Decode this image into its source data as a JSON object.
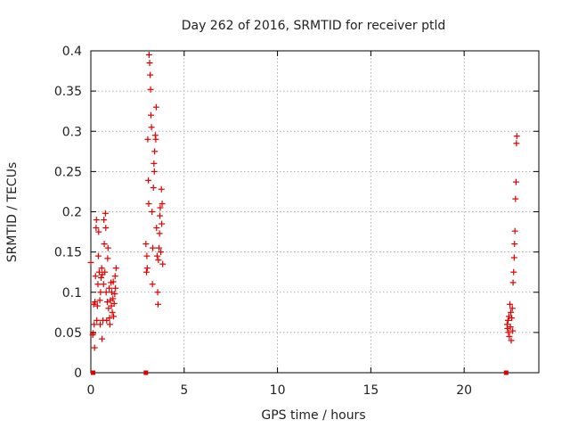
{
  "chart_data": {
    "type": "scatter",
    "title": "Day 262 of 2016, SRMTID for receiver ptld",
    "xlabel": "GPS time / hours",
    "ylabel": "SRMTID / TECUs",
    "xlim": [
      0,
      24
    ],
    "ylim": [
      0,
      0.4
    ],
    "x_ticks": [
      0,
      5,
      10,
      15,
      20
    ],
    "x_tick_labels": [
      "0",
      "5",
      "10",
      "15",
      "20"
    ],
    "y_ticks": [
      0,
      0.05,
      0.1,
      0.15,
      0.2,
      0.25,
      0.3,
      0.35,
      0.4
    ],
    "y_tick_labels": [
      "0",
      "0.05",
      "0.1",
      "0.15",
      "0.2",
      "0.25",
      "0.3",
      "0.35",
      "0.4"
    ],
    "grid": true,
    "marker": "plus",
    "color": "#e00000",
    "series": [
      {
        "points": [
          [
            0.0,
            0.137
          ],
          [
            0.1,
            0.047
          ],
          [
            0.12,
            0.049
          ],
          [
            0.15,
            0.085
          ],
          [
            0.18,
            0.06
          ],
          [
            0.2,
            0.031
          ],
          [
            0.22,
            0.088
          ],
          [
            0.25,
            0.12
          ],
          [
            0.28,
            0.18
          ],
          [
            0.3,
            0.19
          ],
          [
            0.32,
            0.065
          ],
          [
            0.35,
            0.083
          ],
          [
            0.38,
            0.11
          ],
          [
            0.4,
            0.145
          ],
          [
            0.42,
            0.175
          ],
          [
            0.45,
            0.125
          ],
          [
            0.48,
            0.09
          ],
          [
            0.5,
            0.06
          ],
          [
            0.52,
            0.1
          ],
          [
            0.55,
            0.118
          ],
          [
            0.58,
            0.13
          ],
          [
            0.6,
            0.042
          ],
          [
            0.62,
            0.122
          ],
          [
            0.65,
            0.065
          ],
          [
            0.68,
            0.11
          ],
          [
            0.7,
            0.19
          ],
          [
            0.72,
            0.16
          ],
          [
            0.75,
            0.125
          ],
          [
            0.78,
            0.198
          ],
          [
            0.8,
            0.18
          ],
          [
            0.82,
            0.1
          ],
          [
            0.85,
            0.065
          ],
          [
            0.88,
            0.088
          ],
          [
            0.9,
            0.142
          ],
          [
            0.92,
            0.155
          ],
          [
            0.95,
            0.08
          ],
          [
            0.98,
            0.105
          ],
          [
            1.0,
            0.068
          ],
          [
            1.02,
            0.06
          ],
          [
            1.05,
            0.09
          ],
          [
            1.08,
            0.112
          ],
          [
            1.1,
            0.083
          ],
          [
            1.12,
            0.1
          ],
          [
            1.15,
            0.075
          ],
          [
            1.18,
            0.092
          ],
          [
            1.2,
            0.113
          ],
          [
            1.22,
            0.07
          ],
          [
            1.25,
            0.086
          ],
          [
            1.28,
            0.098
          ],
          [
            1.3,
            0.12
          ],
          [
            1.32,
            0.105
          ],
          [
            1.35,
            0.13
          ]
        ]
      },
      {
        "points": [
          [
            2.95,
            0.16
          ],
          [
            2.98,
            0.125
          ],
          [
            3.0,
            0.145
          ],
          [
            3.02,
            0.13
          ],
          [
            3.05,
            0.29
          ],
          [
            3.08,
            0.239
          ],
          [
            3.1,
            0.21
          ],
          [
            3.12,
            0.395
          ],
          [
            3.15,
            0.385
          ],
          [
            3.18,
            0.37
          ],
          [
            3.2,
            0.352
          ],
          [
            3.22,
            0.32
          ],
          [
            3.25,
            0.305
          ],
          [
            3.28,
            0.2
          ],
          [
            3.3,
            0.11
          ],
          [
            3.32,
            0.155
          ],
          [
            3.35,
            0.23
          ],
          [
            3.38,
            0.26
          ],
          [
            3.4,
            0.25
          ],
          [
            3.42,
            0.275
          ],
          [
            3.45,
            0.295
          ],
          [
            3.48,
            0.29
          ],
          [
            3.5,
            0.33
          ],
          [
            3.52,
            0.18
          ],
          [
            3.55,
            0.145
          ],
          [
            3.58,
            0.1
          ],
          [
            3.6,
            0.085
          ],
          [
            3.62,
            0.14
          ],
          [
            3.65,
            0.155
          ],
          [
            3.68,
            0.173
          ],
          [
            3.7,
            0.195
          ],
          [
            3.72,
            0.205
          ],
          [
            3.75,
            0.15
          ],
          [
            3.78,
            0.228
          ],
          [
            3.8,
            0.185
          ],
          [
            3.82,
            0.21
          ],
          [
            3.85,
            0.135
          ]
        ]
      },
      {
        "points": [
          [
            22.3,
            0.06
          ],
          [
            22.32,
            0.055
          ],
          [
            22.35,
            0.065
          ],
          [
            22.38,
            0.05
          ],
          [
            22.4,
            0.07
          ],
          [
            22.42,
            0.045
          ],
          [
            22.45,
            0.085
          ],
          [
            22.48,
            0.057
          ],
          [
            22.5,
            0.075
          ],
          [
            22.52,
            0.04
          ],
          [
            22.55,
            0.068
          ],
          [
            22.58,
            0.08
          ],
          [
            22.6,
            0.052
          ],
          [
            22.62,
            0.112
          ],
          [
            22.65,
            0.125
          ],
          [
            22.68,
            0.143
          ],
          [
            22.7,
            0.16
          ],
          [
            22.72,
            0.176
          ],
          [
            22.75,
            0.216
          ],
          [
            22.78,
            0.237
          ],
          [
            22.8,
            0.285
          ],
          [
            22.82,
            0.294
          ]
        ]
      }
    ],
    "zero_points_x": [
      0.12,
      2.95,
      22.25
    ]
  }
}
